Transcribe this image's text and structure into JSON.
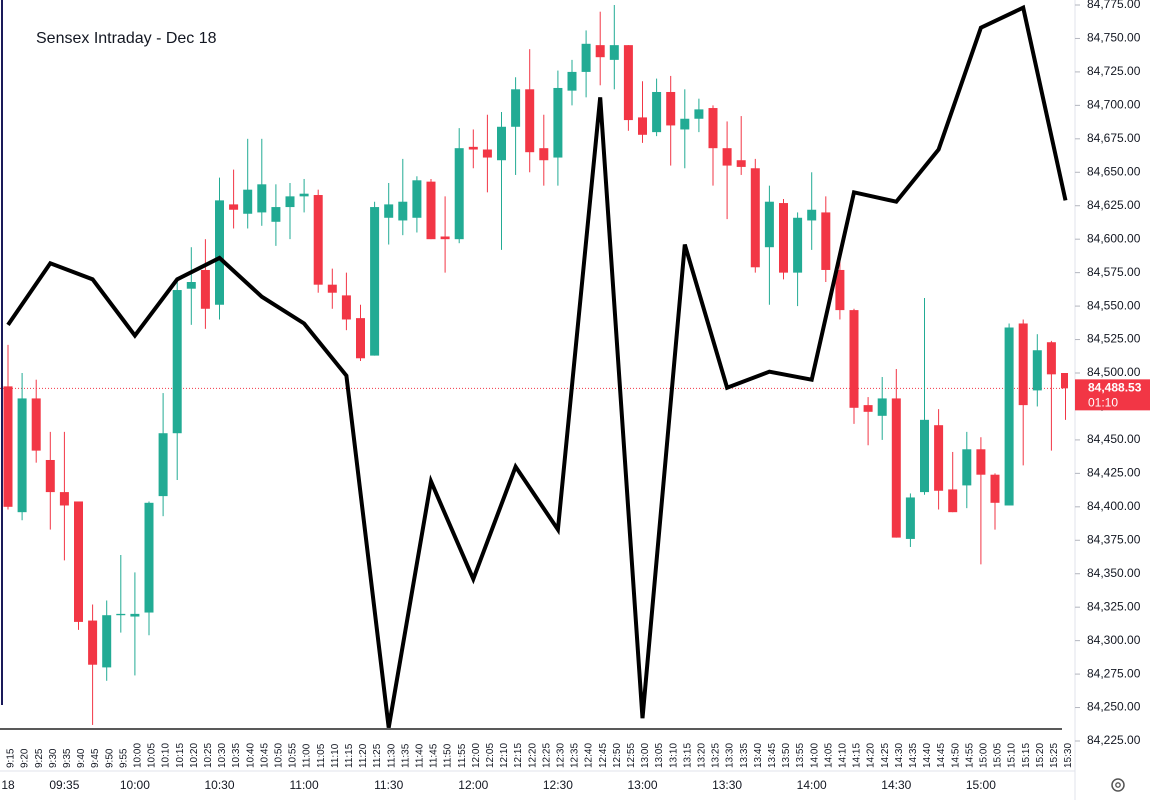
{
  "chart_data": {
    "type": "candlestick",
    "title": "Sensex Intraday - Dec 18",
    "categories": [
      "9:15",
      "9:20",
      "9:25",
      "9:30",
      "9:35",
      "9:40",
      "9:45",
      "9:50",
      "9:55",
      "10:00",
      "10:05",
      "10:10",
      "10:15",
      "10:20",
      "10:25",
      "10:30",
      "10:35",
      "10:40",
      "10:45",
      "10:50",
      "10:55",
      "11:00",
      "11:05",
      "11:10",
      "11:15",
      "11:20",
      "11:25",
      "11:30",
      "11:35",
      "11:40",
      "11:45",
      "11:50",
      "11:55",
      "12:00",
      "12:05",
      "12:10",
      "12:15",
      "12:20",
      "12:25",
      "12:30",
      "12:35",
      "12:40",
      "12:45",
      "12:50",
      "12:55",
      "13:00",
      "13:05",
      "13:10",
      "13:15",
      "13:20",
      "13:25",
      "13:30",
      "13:35",
      "13:40",
      "13:45",
      "13:50",
      "13:55",
      "14:00",
      "14:05",
      "14:10",
      "14:15",
      "14:20",
      "14:25",
      "14:30",
      "14:35",
      "14:40",
      "14:45",
      "14:50",
      "14:55",
      "15:00",
      "15:05",
      "15:10",
      "15:15",
      "15:20",
      "15:25",
      "15:30"
    ],
    "open": [
      84490,
      84396,
      84481,
      84435,
      84411,
      84404,
      84315,
      84280,
      84319,
      84318,
      84321,
      84408,
      84455,
      84563,
      84577,
      84551,
      84626,
      84619,
      84620,
      84613,
      84624,
      84632,
      84633,
      84566,
      84558,
      84541,
      84513,
      84616,
      84614,
      84616,
      84643,
      84602,
      84600,
      84669,
      84667,
      84659,
      84684,
      84712,
      84668,
      84661,
      84711,
      84725,
      84745,
      84734,
      84745,
      84691,
      84680,
      84710,
      84682,
      84690,
      84698,
      84668,
      84659,
      84653,
      84594,
      84627,
      84575,
      84614,
      84620,
      84577,
      84547,
      84476,
      84468,
      84481,
      84376,
      84411,
      84461,
      84413,
      84416,
      84443,
      84424,
      84401,
      84537,
      84487,
      84523,
      84500
    ],
    "high": [
      84521,
      84500,
      84495,
      84456,
      84456,
      84404,
      84327,
      84330,
      84364,
      84351,
      84404,
      84485,
      84570,
      84594,
      84600,
      84646,
      84652,
      84675,
      84675,
      84641,
      84642,
      84645,
      84637,
      84578,
      84575,
      84551,
      84628,
      84642,
      84660,
      84647,
      84645,
      84632,
      84683,
      84682,
      84693,
      84695,
      84721,
      84742,
      84693,
      84726,
      84734,
      84756,
      84770,
      84775,
      84745,
      84718,
      84720,
      84722,
      84712,
      84705,
      84700,
      84688,
      84692,
      84660,
      84640,
      84630,
      84620,
      84650,
      84632,
      84590,
      84548,
      84482,
      84497,
      84503,
      84410,
      84556,
      84473,
      84441,
      84456,
      84452,
      84425,
      84537,
      84540,
      84529,
      84524,
      84500
    ],
    "low": [
      84398,
      84390,
      84433,
      84383,
      84360,
      84308,
      84237,
      84270,
      84306,
      84274,
      84304,
      84393,
      84420,
      84536,
      84533,
      84540,
      84608,
      84608,
      84610,
      84595,
      84600,
      84620,
      84560,
      84548,
      84532,
      84509,
      84513,
      84596,
      84603,
      84605,
      84600,
      84575,
      84597,
      84653,
      84635,
      84592,
      84648,
      84650,
      84640,
      84640,
      84700,
      84706,
      84715,
      84712,
      84681,
      84672,
      84677,
      84655,
      84653,
      84680,
      84640,
      84615,
      84648,
      84575,
      84551,
      84570,
      84550,
      84592,
      84568,
      84540,
      84462,
      84446,
      84450,
      84377,
      84370,
      84409,
      84398,
      84396,
      84399,
      84357,
      84383,
      84401,
      84431,
      84475,
      84442,
      84465
    ],
    "close": [
      84400,
      84481,
      84442,
      84411,
      84401,
      84314,
      84282,
      84319,
      84320,
      84320,
      84403,
      84455,
      84562,
      84568,
      84548,
      84629,
      84622,
      84637,
      84641,
      84624,
      84632,
      84634,
      84566,
      84560,
      84540,
      84511,
      84624,
      84626,
      84628,
      84644,
      84600,
      84600,
      84668,
      84667,
      84661,
      84684,
      84712,
      84665,
      84659,
      84713,
      84725,
      84746,
      84736,
      84745,
      84689,
      84678,
      84710,
      84685,
      84690,
      84697,
      84668,
      84655,
      84654,
      84579,
      84628,
      84575,
      84616,
      84622,
      84577,
      84547,
      84474,
      84471,
      84481,
      84377,
      84407,
      84465,
      84412,
      84396,
      84443,
      84424,
      84403,
      84534,
      84476,
      84517,
      84499,
      84488.53
    ],
    "up_color": "#22ab94",
    "down_color": "#f23645",
    "ylim": [
      84225,
      84775
    ],
    "yticks": [
      {
        "value": 84225,
        "label": "84,225.00"
      },
      {
        "value": 84250,
        "label": "84,250.00"
      },
      {
        "value": 84275,
        "label": "84,275.00"
      },
      {
        "value": 84300,
        "label": "84,300.00"
      },
      {
        "value": 84325,
        "label": "84,325.00"
      },
      {
        "value": 84350,
        "label": "84,350.00"
      },
      {
        "value": 84375,
        "label": "84,375.00"
      },
      {
        "value": 84400,
        "label": "84,400.00"
      },
      {
        "value": 84425,
        "label": "84,425.00"
      },
      {
        "value": 84450,
        "label": "84,450.00"
      },
      {
        "value": 84475,
        "label": "84,475.00"
      },
      {
        "value": 84500,
        "label": "84,500.00"
      },
      {
        "value": 84525,
        "label": "84,525.00"
      },
      {
        "value": 84550,
        "label": "84,550.00"
      },
      {
        "value": 84575,
        "label": "84,575.00"
      },
      {
        "value": 84600,
        "label": "84,600.00"
      },
      {
        "value": 84625,
        "label": "84,625.00"
      },
      {
        "value": 84650,
        "label": "84,650.00"
      },
      {
        "value": 84675,
        "label": "84,675.00"
      },
      {
        "value": 84700,
        "label": "84,700.00"
      },
      {
        "value": 84725,
        "label": "84,725.00"
      },
      {
        "value": 84750,
        "label": "84,750.00"
      },
      {
        "value": 84775,
        "label": "84,775.00"
      }
    ],
    "xticks": [
      {
        "value": "9:15",
        "label": "18"
      },
      {
        "value": "9:35",
        "label": "09:35"
      },
      "10:00",
      "10:30",
      "11:00",
      "11:30",
      "12:00",
      "12:30",
      "13:00",
      "13:30",
      "14:00",
      "14:30",
      "15:00"
    ],
    "last_price": {
      "value": 84488.53,
      "label": "84,488.53",
      "countdown": "01:10",
      "color": "#f23645"
    },
    "overlay": {
      "type": "line",
      "color": "#000000",
      "categories": [
        "9:15",
        "9:30",
        "9:45",
        "10:00",
        "10:15",
        "10:30",
        "10:45",
        "11:00",
        "11:15",
        "11:30",
        "11:45",
        "12:00",
        "12:15",
        "12:30",
        "12:45",
        "13:00",
        "13:15",
        "13:30",
        "13:45",
        "14:00",
        "14:15",
        "14:30",
        "14:45",
        "15:00",
        "15:15",
        "15:30"
      ],
      "values": [
        84536,
        84582,
        84570,
        84528,
        84570,
        84586,
        84557,
        84537,
        84498,
        84235,
        84419,
        84346,
        84430,
        84383,
        84706,
        84242,
        84596,
        84489,
        84501,
        84495,
        84635,
        84628,
        84667,
        84758,
        84773,
        84629
      ]
    }
  }
}
